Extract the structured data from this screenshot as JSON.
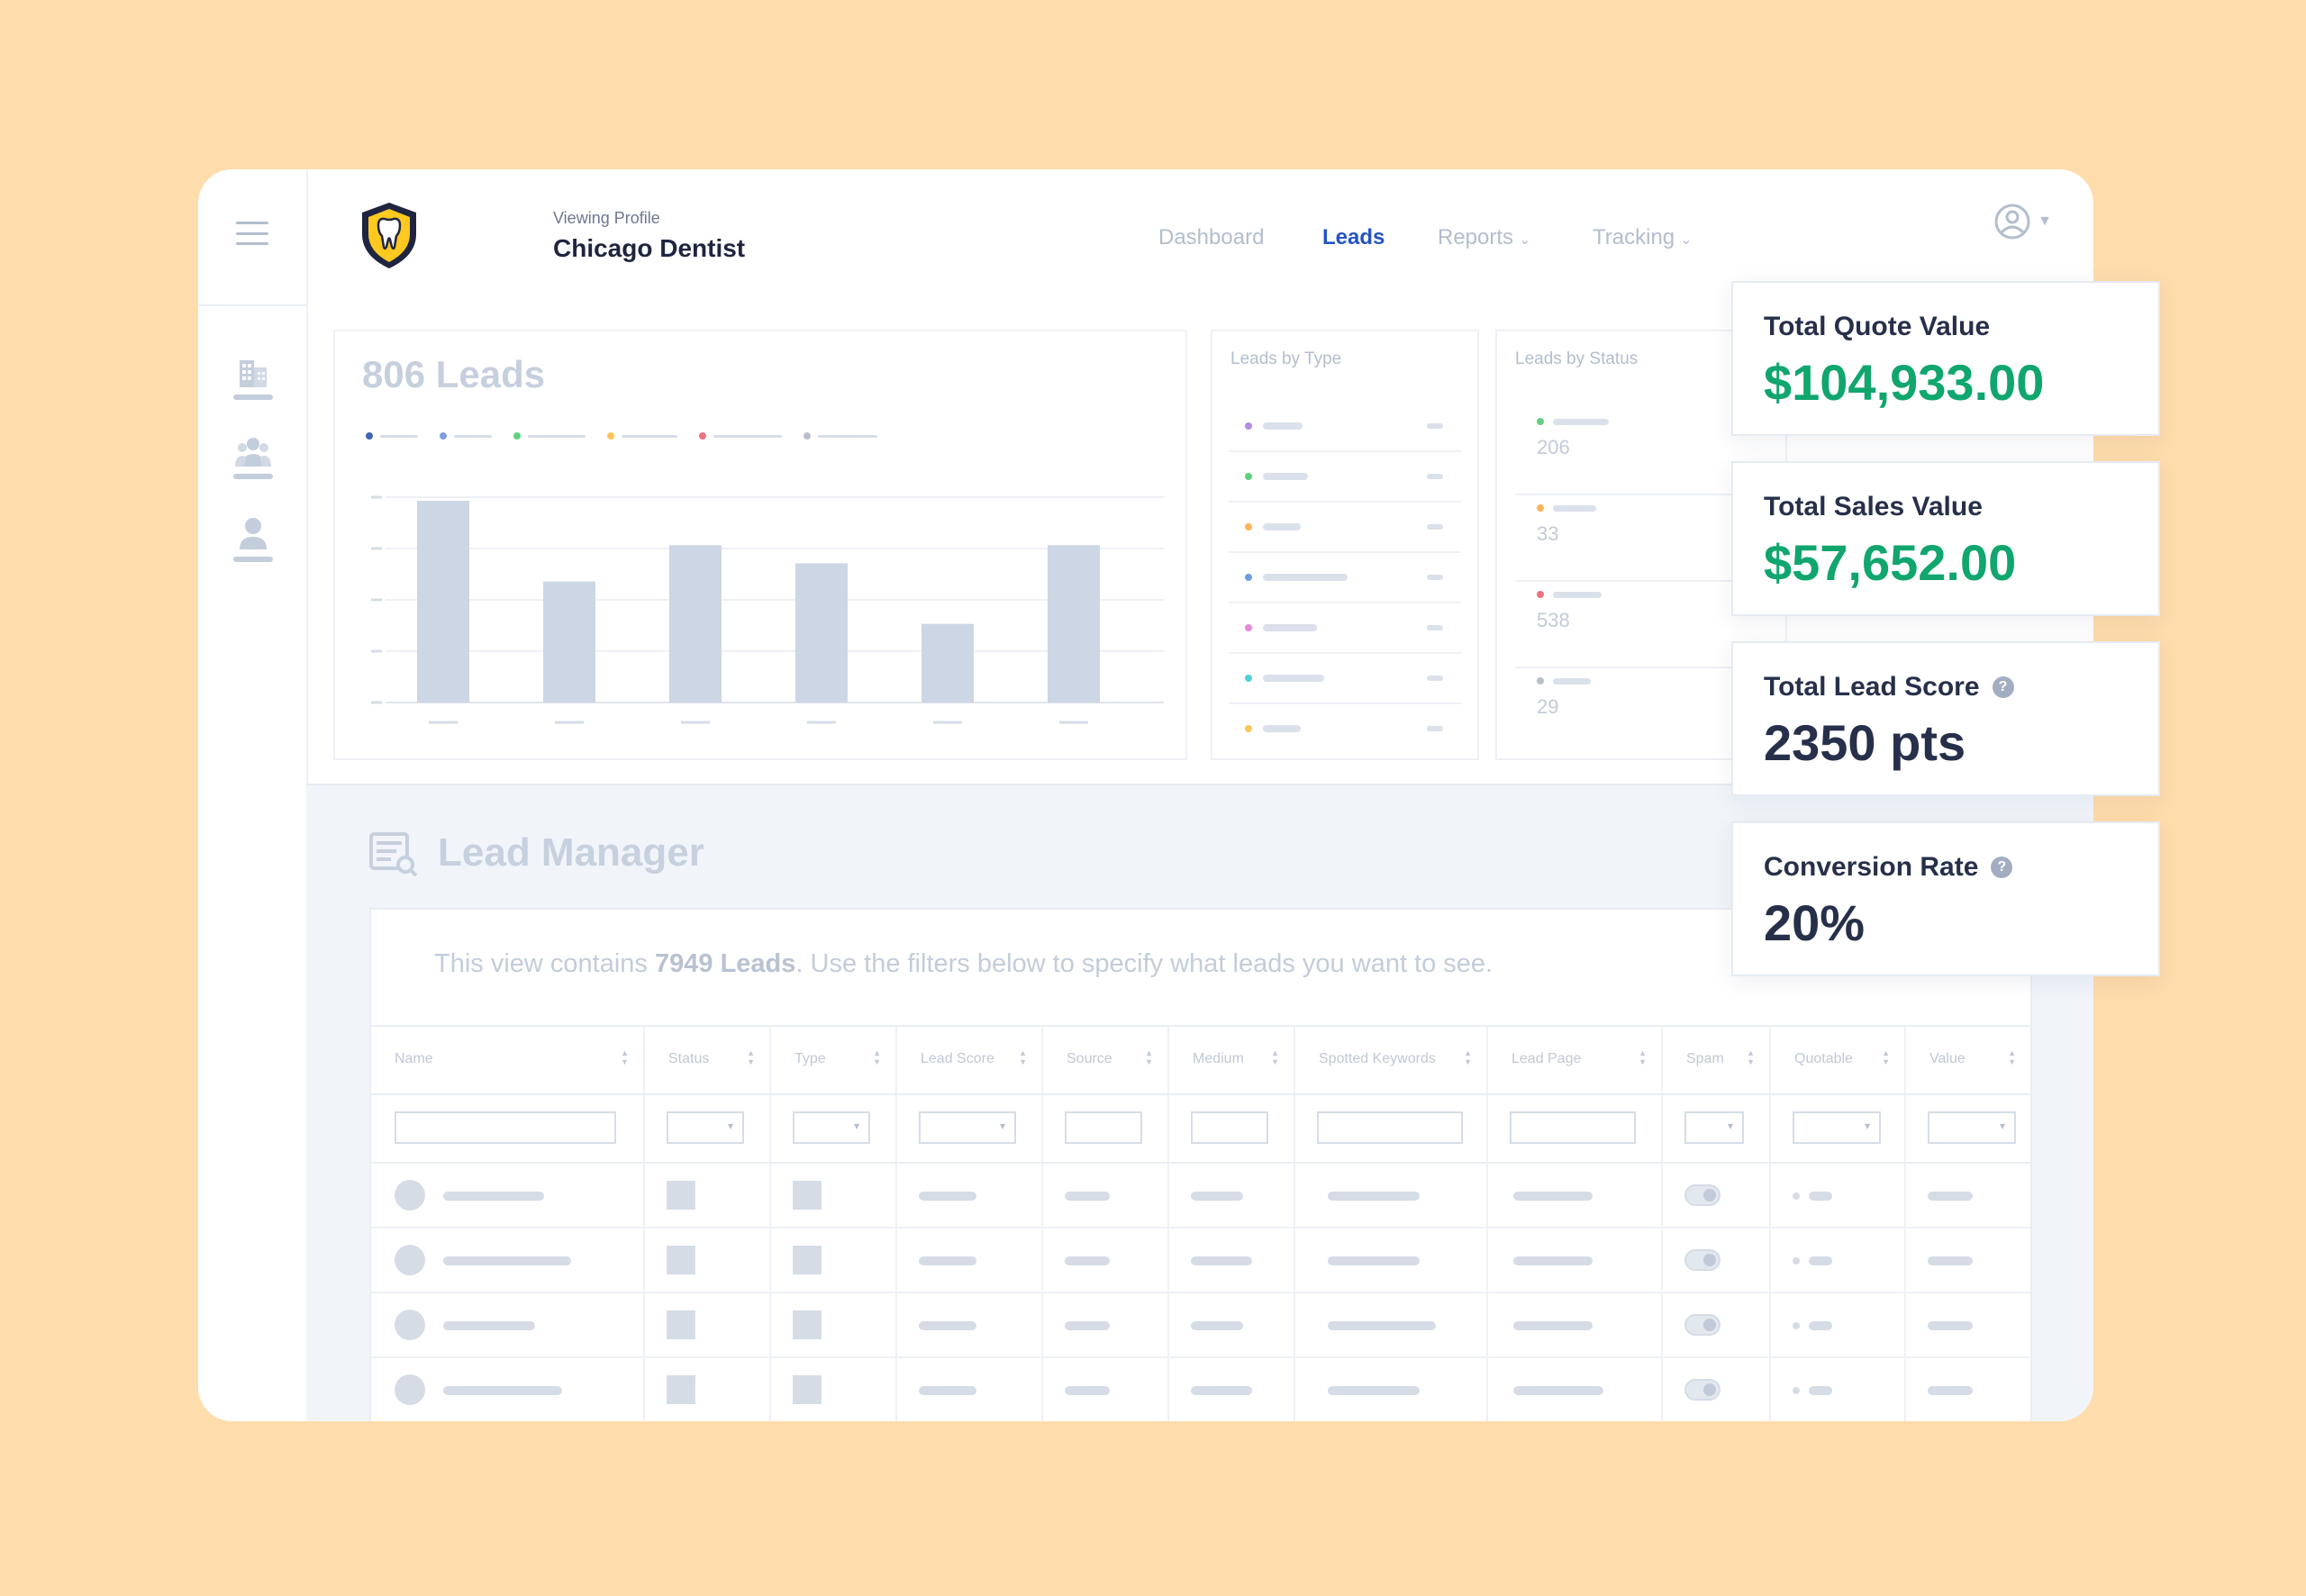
{
  "header": {
    "viewing_label": "Viewing Profile",
    "profile_name": "Chicago Dentist",
    "nav": [
      {
        "label": "Dashboard",
        "active": false,
        "dropdown": false
      },
      {
        "label": "Leads",
        "active": true,
        "dropdown": true
      },
      {
        "label": "Reports",
        "active": false,
        "dropdown": true
      },
      {
        "label": "Tracking",
        "active": false,
        "dropdown": true
      }
    ]
  },
  "sidebar": {
    "icons": [
      "building-icon",
      "users-group-icon",
      "user-icon"
    ]
  },
  "leads_chart": {
    "title": "806 Leads",
    "legend_colors": [
      "#3f65b8",
      "#7f9de3",
      "#5fd07f",
      "#ffc45a",
      "#f0717f",
      "#b8bfcc"
    ]
  },
  "chart_data": {
    "type": "bar",
    "title": "806 Leads",
    "categories": [
      "",
      "",
      "",
      "",
      "",
      ""
    ],
    "values": [
      100,
      60,
      78,
      69,
      39,
      78
    ],
    "ylim": [
      0,
      100
    ],
    "grid": true,
    "legend_position": "top-left"
  },
  "leads_by_type": {
    "title": "Leads by Type",
    "dot_colors": [
      "#b38be6",
      "#5fd07f",
      "#ffb35a",
      "#6f9de3",
      "#e98ad9",
      "#4fd0d8",
      "#ffc45a"
    ]
  },
  "leads_by_status": {
    "title": "Leads by Status",
    "rows": [
      {
        "value": "206",
        "color": "#5fd07f"
      },
      {
        "value": "33",
        "color": "#ffb35a"
      },
      {
        "value": "538",
        "color": "#f0717f"
      },
      {
        "value": "29",
        "color": "#b8bfcc"
      }
    ]
  },
  "lead_manager": {
    "title": "Lead Manager",
    "desc_prefix": "This view contains ",
    "desc_count": "7949 Leads",
    "desc_suffix": ". Use the filters below to specify what leads you want to see.",
    "columns": [
      "Name",
      "Status",
      "Type",
      "Lead Score",
      "Source",
      "Medium",
      "Spotted Keywords",
      "Lead Page",
      "Spam",
      "Quotable",
      "Value"
    ]
  },
  "stats": [
    {
      "label": "Total Quote Value",
      "value": "$104,933.00",
      "color": "green",
      "help": false
    },
    {
      "label": "Total Sales Value",
      "value": "$57,652.00",
      "color": "green",
      "help": true
    },
    {
      "label": "Total Lead Score",
      "value": "2350 pts",
      "color": "dark",
      "help": true
    },
    {
      "label": "Conversion Rate",
      "value": "20%",
      "color": "dark",
      "help": true
    }
  ],
  "help_glyph": "?"
}
